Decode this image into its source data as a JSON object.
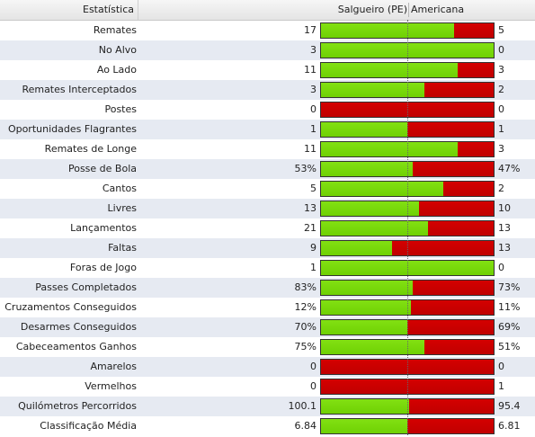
{
  "header": {
    "stat_label": "Estatística",
    "home_team": "Salgueiro (PE)",
    "away_team": "Americana"
  },
  "colors": {
    "home": "#6fd104",
    "away": "#cc0000"
  },
  "stats": [
    {
      "label": "Remates",
      "home": "17",
      "away": "5",
      "home_share": 0.77
    },
    {
      "label": "No Alvo",
      "home": "3",
      "away": "0",
      "home_share": 1.0
    },
    {
      "label": "Ao Lado",
      "home": "11",
      "away": "3",
      "home_share": 0.79
    },
    {
      "label": "Remates Interceptados",
      "home": "3",
      "away": "2",
      "home_share": 0.6
    },
    {
      "label": "Postes",
      "home": "0",
      "away": "0",
      "home_share": 0.0
    },
    {
      "label": "Oportunidades Flagrantes",
      "home": "1",
      "away": "1",
      "home_share": 0.5
    },
    {
      "label": "Remates de Longe",
      "home": "11",
      "away": "3",
      "home_share": 0.79
    },
    {
      "label": "Posse de Bola",
      "home": "53%",
      "away": "47%",
      "home_share": 0.53
    },
    {
      "label": "Cantos",
      "home": "5",
      "away": "2",
      "home_share": 0.71
    },
    {
      "label": "Livres",
      "home": "13",
      "away": "10",
      "home_share": 0.57
    },
    {
      "label": "Lançamentos",
      "home": "21",
      "away": "13",
      "home_share": 0.62
    },
    {
      "label": "Faltas",
      "home": "9",
      "away": "13",
      "home_share": 0.41
    },
    {
      "label": "Foras de Jogo",
      "home": "1",
      "away": "0",
      "home_share": 1.0
    },
    {
      "label": "Passes Completados",
      "home": "83%",
      "away": "73%",
      "home_share": 0.53
    },
    {
      "label": "Cruzamentos Conseguidos",
      "home": "12%",
      "away": "11%",
      "home_share": 0.52
    },
    {
      "label": "Desarmes Conseguidos",
      "home": "70%",
      "away": "69%",
      "home_share": 0.5
    },
    {
      "label": "Cabeceamentos Ganhos",
      "home": "75%",
      "away": "51%",
      "home_share": 0.6
    },
    {
      "label": "Amarelos",
      "home": "0",
      "away": "0",
      "home_share": 0.0
    },
    {
      "label": "Vermelhos",
      "home": "0",
      "away": "1",
      "home_share": 0.0
    },
    {
      "label": "Quilómetros Percorridos",
      "home": "100.1",
      "away": "95.4",
      "home_share": 0.51
    },
    {
      "label": "Classificação Média",
      "home": "6.84",
      "away": "6.81",
      "home_share": 0.5
    }
  ]
}
